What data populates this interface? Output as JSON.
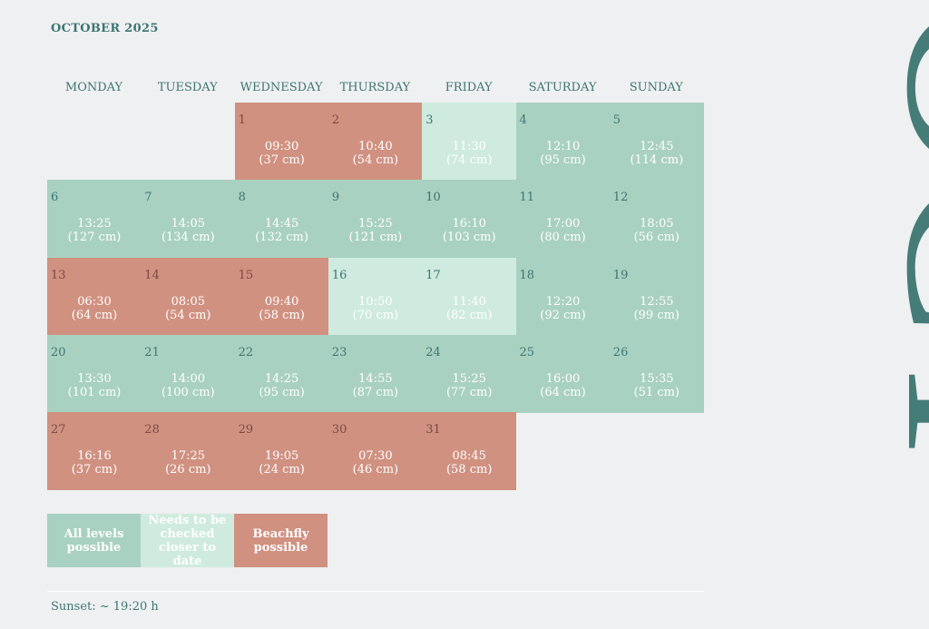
{
  "header": {
    "title": "OCTOBER 2025"
  },
  "weekdays": [
    "MONDAY",
    "TUESDAY",
    "WEDNESDAY",
    "THURSDAY",
    "FRIDAY",
    "SATURDAY",
    "SUNDAY"
  ],
  "days": [
    {
      "day": "1",
      "time": "09:30",
      "height": "(37 cm)",
      "status": "beachfly"
    },
    {
      "day": "2",
      "time": "10:40",
      "height": "(54 cm)",
      "status": "beachfly"
    },
    {
      "day": "3",
      "time": "11:30",
      "height": "(74 cm)",
      "status": "check"
    },
    {
      "day": "4",
      "time": "12:10",
      "height": "(95 cm)",
      "status": "all"
    },
    {
      "day": "5",
      "time": "12:45",
      "height": "(114 cm)",
      "status": "all"
    },
    {
      "day": "6",
      "time": "13:25",
      "height": "(127 cm)",
      "status": "all"
    },
    {
      "day": "7",
      "time": "14:05",
      "height": "(134 cm)",
      "status": "all"
    },
    {
      "day": "8",
      "time": "14:45",
      "height": "(132 cm)",
      "status": "all"
    },
    {
      "day": "9",
      "time": "15:25",
      "height": "(121 cm)",
      "status": "all"
    },
    {
      "day": "10",
      "time": "16:10",
      "height": "(103 cm)",
      "status": "all"
    },
    {
      "day": "11",
      "time": "17:00",
      "height": "(80 cm)",
      "status": "all"
    },
    {
      "day": "12",
      "time": "18:05",
      "height": "(56 cm)",
      "status": "all"
    },
    {
      "day": "13",
      "time": "06:30",
      "height": "(64 cm)",
      "status": "beachfly"
    },
    {
      "day": "14",
      "time": "08:05",
      "height": "(54 cm)",
      "status": "beachfly"
    },
    {
      "day": "15",
      "time": "09:40",
      "height": "(58 cm)",
      "status": "beachfly"
    },
    {
      "day": "16",
      "time": "10:50",
      "height": "(70 cm)",
      "status": "check"
    },
    {
      "day": "17",
      "time": "11:40",
      "height": "(82 cm)",
      "status": "check"
    },
    {
      "day": "18",
      "time": "12:20",
      "height": "(92 cm)",
      "status": "all"
    },
    {
      "day": "19",
      "time": "12:55",
      "height": "(99 cm)",
      "status": "all"
    },
    {
      "day": "20",
      "time": "13:30",
      "height": "(101 cm)",
      "status": "all"
    },
    {
      "day": "21",
      "time": "14:00",
      "height": "(100 cm)",
      "status": "all"
    },
    {
      "day": "22",
      "time": "14:25",
      "height": "(95 cm)",
      "status": "all"
    },
    {
      "day": "23",
      "time": "14:55",
      "height": "(87 cm)",
      "status": "all"
    },
    {
      "day": "24",
      "time": "15:25",
      "height": "(77 cm)",
      "status": "all"
    },
    {
      "day": "25",
      "time": "16:00",
      "height": "(64 cm)",
      "status": "all"
    },
    {
      "day": "26",
      "time": "15:35",
      "height": "(51 cm)",
      "status": "all"
    },
    {
      "day": "27",
      "time": "16:16",
      "height": "(37 cm)",
      "status": "beachfly"
    },
    {
      "day": "28",
      "time": "17:25",
      "height": "(26 cm)",
      "status": "beachfly"
    },
    {
      "day": "29",
      "time": "19:05",
      "height": "(24 cm)",
      "status": "beachfly"
    },
    {
      "day": "30",
      "time": "07:30",
      "height": "(46 cm)",
      "status": "beachfly"
    },
    {
      "day": "31",
      "time": "08:45",
      "height": "(58 cm)",
      "status": "beachfly"
    }
  ],
  "legend": {
    "all_levels": "All levels possible",
    "check": "Needs to be checked closer to date",
    "beachfly": "Beachfly possible"
  },
  "footer": {
    "sunset": "Sunset: ~ 19:20 h"
  },
  "side_text": "OCT",
  "colors": {
    "all_levels": "#a9d1c1",
    "check": "#cfebdf",
    "beachfly": "#d09181",
    "accent": "#3d7572",
    "background": "#eff0f2"
  }
}
